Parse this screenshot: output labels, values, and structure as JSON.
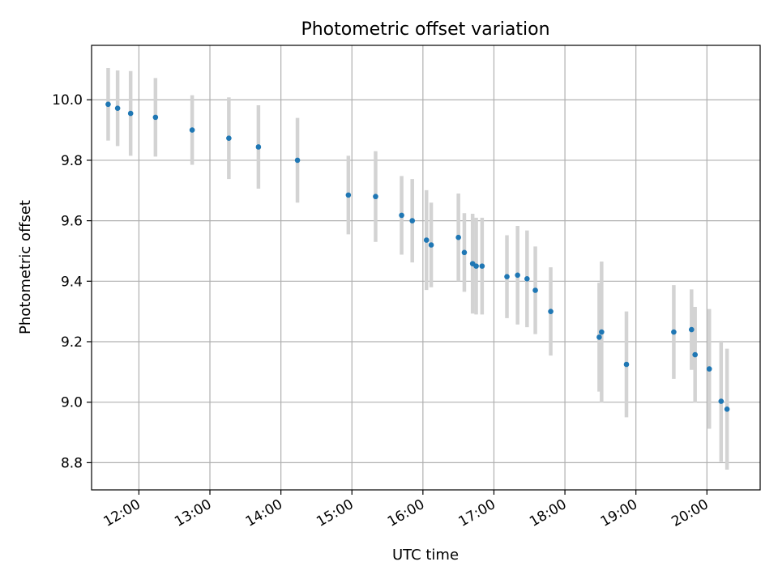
{
  "chart_data": {
    "type": "scatter",
    "title": "Photometric offset variation",
    "xlabel": "UTC time",
    "ylabel": "Photometric offset",
    "x_ticks": [
      "12:00",
      "13:00",
      "14:00",
      "15:00",
      "16:00",
      "17:00",
      "18:00",
      "19:00",
      "20:00"
    ],
    "y_ticks": [
      "8.8",
      "9.0",
      "9.2",
      "9.4",
      "9.6",
      "9.8",
      "10.0"
    ],
    "xlim": [
      "11:20",
      "20:45"
    ],
    "ylim": [
      8.71,
      10.18
    ],
    "grid": true,
    "marker_color": "#1f77b4",
    "errorbar_color": "#d3d3d3",
    "series": [
      {
        "points": [
          {
            "x": "11:34",
            "y": 9.985,
            "err": 0.12
          },
          {
            "x": "11:42",
            "y": 9.972,
            "err": 0.125
          },
          {
            "x": "11:53",
            "y": 9.955,
            "err": 0.14
          },
          {
            "x": "12:14",
            "y": 9.942,
            "err": 0.13
          },
          {
            "x": "12:45",
            "y": 9.9,
            "err": 0.115
          },
          {
            "x": "13:16",
            "y": 9.873,
            "err": 0.135
          },
          {
            "x": "13:41",
            "y": 9.844,
            "err": 0.138
          },
          {
            "x": "14:14",
            "y": 9.8,
            "err": 0.14
          },
          {
            "x": "14:57",
            "y": 9.685,
            "err": 0.13
          },
          {
            "x": "15:20",
            "y": 9.68,
            "err": 0.15
          },
          {
            "x": "15:42",
            "y": 9.618,
            "err": 0.13
          },
          {
            "x": "15:51",
            "y": 9.6,
            "err": 0.138
          },
          {
            "x": "16:03",
            "y": 9.536,
            "err": 0.165
          },
          {
            "x": "16:07",
            "y": 9.52,
            "err": 0.14
          },
          {
            "x": "16:30",
            "y": 9.545,
            "err": 0.145
          },
          {
            "x": "16:35",
            "y": 9.495,
            "err": 0.13
          },
          {
            "x": "16:42",
            "y": 9.458,
            "err": 0.165
          },
          {
            "x": "16:45",
            "y": 9.45,
            "err": 0.16
          },
          {
            "x": "16:50",
            "y": 9.45,
            "err": 0.16
          },
          {
            "x": "17:11",
            "y": 9.415,
            "err": 0.137
          },
          {
            "x": "17:20",
            "y": 9.42,
            "err": 0.163
          },
          {
            "x": "17:28",
            "y": 9.408,
            "err": 0.16
          },
          {
            "x": "17:35",
            "y": 9.37,
            "err": 0.145
          },
          {
            "x": "17:48",
            "y": 9.3,
            "err": 0.146
          },
          {
            "x": "18:29",
            "y": 9.215,
            "err": 0.18
          },
          {
            "x": "18:31",
            "y": 9.232,
            "err": 0.233
          },
          {
            "x": "18:52",
            "y": 9.125,
            "err": 0.175
          },
          {
            "x": "19:32",
            "y": 9.232,
            "err": 0.155
          },
          {
            "x": "19:47",
            "y": 9.24,
            "err": 0.133
          },
          {
            "x": "19:50",
            "y": 9.157,
            "err": 0.158
          },
          {
            "x": "20:02",
            "y": 9.11,
            "err": 0.198
          },
          {
            "x": "20:12",
            "y": 9.003,
            "err": 0.2
          },
          {
            "x": "20:17",
            "y": 8.977,
            "err": 0.2
          }
        ]
      }
    ]
  }
}
